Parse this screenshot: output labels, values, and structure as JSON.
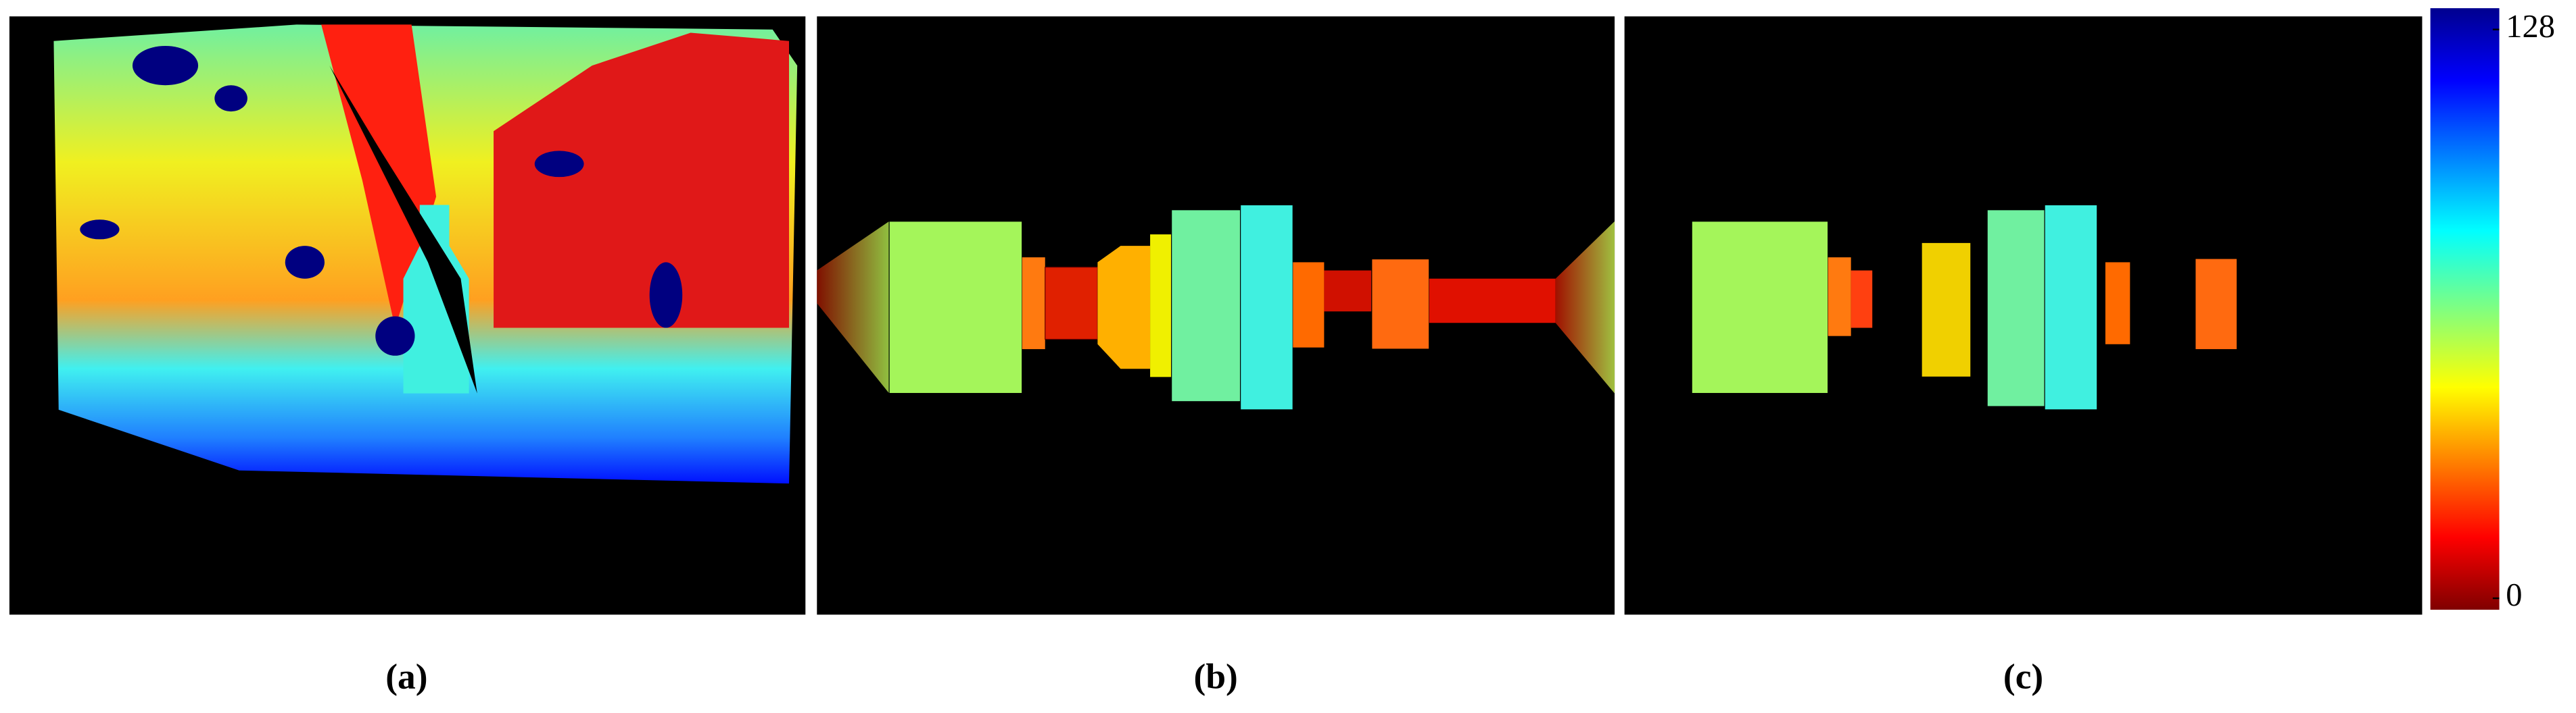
{
  "panels": [
    {
      "label": "(a)"
    },
    {
      "label": "(b)"
    },
    {
      "label": "(c)"
    }
  ],
  "colorbar": {
    "lim": [
      0,
      128
    ],
    "ticks": [
      0,
      128
    ]
  }
}
